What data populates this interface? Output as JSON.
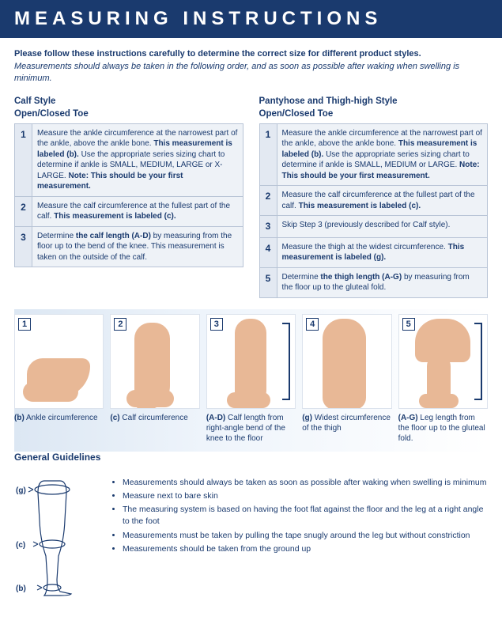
{
  "header": "MEASURING INSTRUCTIONS",
  "intro": {
    "bold": "Please follow these instructions carefully to determine the correct size for different product styles.",
    "italic": "Measurements should always be taken in the following order, and as soon as possible after waking when swelling is minimum."
  },
  "left": {
    "title1": "Calf Style",
    "title2": "Open/Closed Toe",
    "rows": [
      {
        "n": "1",
        "html": "Measure the ankle circumference at the narrowest part of the ankle, above the ankle bone. <b>This measurement is labeled (b).</b> Use the appropriate series sizing chart to determine if ankle is SMALL, MEDIUM, LARGE or X-LARGE. <b>Note: This should be your first measurement.</b>"
      },
      {
        "n": "2",
        "html": "Measure the calf circumference at the fullest part of the calf. <b>This measurement is labeled (c).</b>"
      },
      {
        "n": "3",
        "html": "Determine <b>the calf length (A-D)</b> by measuring from the floor up to the bend of the knee. This measurement is taken on the outside of the calf."
      }
    ]
  },
  "right": {
    "title1": "Pantyhose and Thigh-high Style",
    "title2": "Open/Closed Toe",
    "rows": [
      {
        "n": "1",
        "html": "Measure the ankle circumference at the narrowest part of the ankle, above the ankle bone. <b>This measurement is labeled (b).</b> Use the appropriate series sizing chart to determine if ankle is SMALL, MEDIUM or LARGE. <b>Note: This should be your first measurement.</b>"
      },
      {
        "n": "2",
        "html": "Measure the calf circumference at the fullest part of the calf. <b>This measurement is labeled (c).</b>"
      },
      {
        "n": "3",
        "html": "Skip Step 3 (previously described for Calf style)."
      },
      {
        "n": "4",
        "html": "Measure the thigh at the widest circumference. <b>This measurement is labeled (g).</b>"
      },
      {
        "n": "5",
        "html": "Determine <b>the thigh length (A-G)</b> by measuring from the floor up to the gluteal fold."
      }
    ]
  },
  "diagrams": [
    {
      "n": "1",
      "caption": "<b>(b)</b> Ankle circumference"
    },
    {
      "n": "2",
      "caption": "<b>(c)</b> Calf circumference"
    },
    {
      "n": "3",
      "caption": "<b>(A-D)</b> Calf length from right-angle bend of the knee to the floor"
    },
    {
      "n": "4",
      "caption": "<b>(g)</b> Widest circumfer­ence of the thigh"
    },
    {
      "n": "5",
      "caption": "<b>(A-G)</b> Leg length from the floor up to the gluteal fold."
    }
  ],
  "guidelines": {
    "title": "General Guidelines",
    "labels": {
      "g": "(g)",
      "c": "(c)",
      "b": "(b)"
    },
    "items": [
      "Measurements should always be taken as soon as possible after waking when swelling is minimum",
      "Measure next to bare skin",
      "The measuring system is based on having the foot flat against the floor and the leg at a right angle to the foot",
      "Measurements must be taken by pulling the tape snugly around the leg but without constriction",
      "Measurements should be taken from the ground up"
    ]
  },
  "colors": {
    "navy": "#1a3a6e",
    "skin": "#e8b896",
    "panel": "#eef2f7",
    "border": "#b8c4d6"
  }
}
